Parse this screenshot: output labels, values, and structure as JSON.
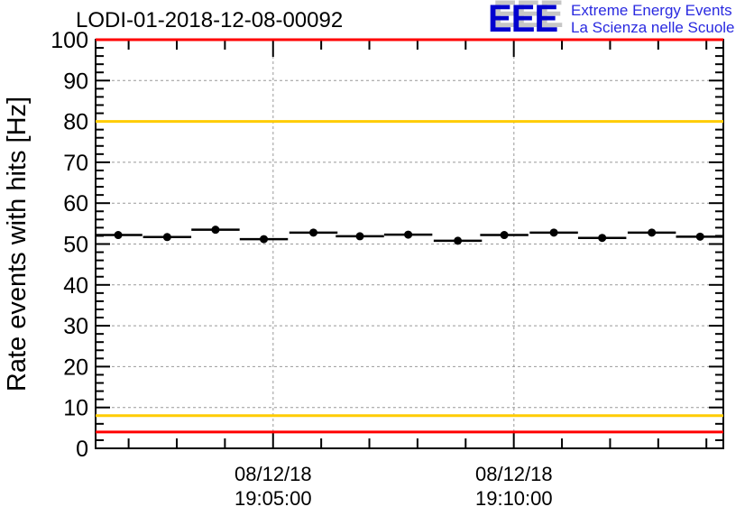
{
  "header": {
    "logo": {
      "acronym": "EEE",
      "line1": "Extreme Energy Events",
      "line2": "La Scienza nelle Scuole",
      "acronym_color": "#0202cf",
      "subtitle_color": "#2a2ae0",
      "shadow_color": "#c6c6c6"
    }
  },
  "chart_data": {
    "type": "scatter",
    "title": "LODI-01-2018-12-08-00092",
    "xlabel": "",
    "ylabel": "Rate events with hits [Hz]",
    "ylim": [
      0,
      100
    ],
    "ytick_step": 10,
    "yminor_step": 2,
    "grid": true,
    "legend": "none",
    "colors": {
      "grid": "#999999",
      "axis": "#000000",
      "marker": "#000000",
      "alarm_red": "#ff0000",
      "warning_yellow": "#ffcc00"
    },
    "x_time_ticks": [
      {
        "frac": 0.2828,
        "date": "08/12/18",
        "time": "19:05:00"
      },
      {
        "frac": 0.6664,
        "date": "08/12/18",
        "time": "19:10:00"
      }
    ],
    "xminor": {
      "first_frac": 0.0526,
      "step_frac": 0.0767,
      "count": 13,
      "major_indices": [
        3,
        8
      ],
      "minor_interval": "1 minute"
    },
    "threshold_lines": [
      {
        "y": 100,
        "color": "#ff0000",
        "name": "upper-alarm"
      },
      {
        "y": 80,
        "color": "#ffcc00",
        "name": "upper-warning"
      },
      {
        "y": 8,
        "color": "#ffcc00",
        "name": "lower-warning"
      },
      {
        "y": 4,
        "color": "#ff0000",
        "name": "lower-alarm"
      }
    ],
    "series": [
      {
        "name": "rate-events-with-hits",
        "marker": "filled-circle",
        "color": "#000000",
        "xerr_frac": 0.0384,
        "yerr": 0.9,
        "points": [
          {
            "time": "19:01:48",
            "x_frac": 0.036,
            "y": 52.2
          },
          {
            "time": "19:02:48",
            "x_frac": 0.114,
            "y": 51.7
          },
          {
            "time": "19:03:48",
            "x_frac": 0.191,
            "y": 53.5
          },
          {
            "time": "19:04:49",
            "x_frac": 0.268,
            "y": 51.2
          },
          {
            "time": "19:05:50",
            "x_frac": 0.347,
            "y": 52.8
          },
          {
            "time": "19:06:48",
            "x_frac": 0.421,
            "y": 51.9
          },
          {
            "time": "19:07:48",
            "x_frac": 0.498,
            "y": 52.3
          },
          {
            "time": "19:08:50",
            "x_frac": 0.577,
            "y": 50.8
          },
          {
            "time": "19:09:48",
            "x_frac": 0.651,
            "y": 52.2
          },
          {
            "time": "19:10:50",
            "x_frac": 0.73,
            "y": 52.8
          },
          {
            "time": "19:11:50",
            "x_frac": 0.807,
            "y": 51.5
          },
          {
            "time": "19:12:52",
            "x_frac": 0.886,
            "y": 52.8
          },
          {
            "time": "19:13:52",
            "x_frac": 0.963,
            "y": 51.8
          }
        ]
      }
    ]
  }
}
